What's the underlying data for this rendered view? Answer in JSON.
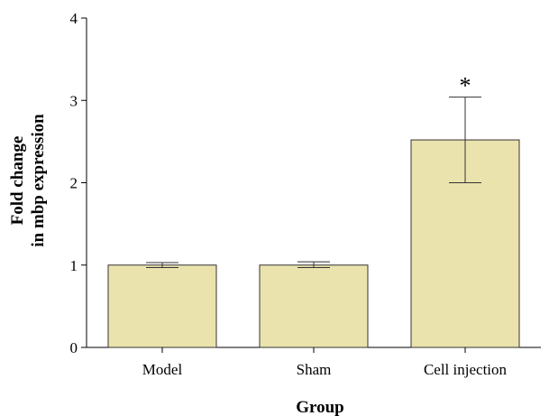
{
  "chart_data": {
    "type": "bar",
    "title": "",
    "xlabel": "Group",
    "ylabel": [
      "Fold change",
      "in mbp expression"
    ],
    "categories": [
      "Model",
      "Sham",
      "Cell injection"
    ],
    "values": [
      1.0,
      1.0,
      2.52
    ],
    "error_low": [
      0.97,
      0.97,
      2.0
    ],
    "error_high": [
      1.03,
      1.04,
      3.04
    ],
    "annotations": [
      "",
      "",
      "*"
    ],
    "ylim": [
      0,
      4
    ],
    "yticks": [
      "0",
      "1",
      "2",
      "3",
      "4"
    ],
    "bar_color": "#ebe3ad",
    "bar_edge_color": "#333333",
    "grid": false
  }
}
